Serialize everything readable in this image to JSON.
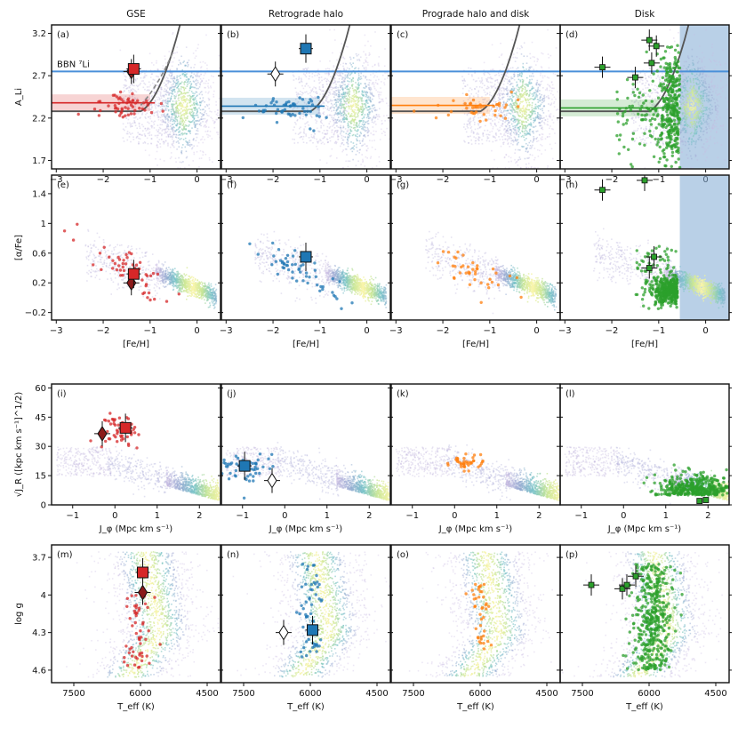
{
  "columns": [
    {
      "title": "GSE",
      "color": "#d62728"
    },
    {
      "title": "Retrograde halo",
      "color": "#1f77b4"
    },
    {
      "title": "Prograde halo and disk",
      "color": "#ff7f0e"
    },
    {
      "title": "Disk",
      "color": "#2ca02c"
    }
  ],
  "rows": [
    {
      "key": "li",
      "ylabel": "A_Li",
      "xticks": [
        -3,
        -2,
        -1,
        0
      ],
      "yticks": [
        1.7,
        2.2,
        2.7,
        3.2
      ],
      "annotation": "BBN ⁷Li",
      "panel_labels": [
        "(a)",
        "(b)",
        "(c)",
        "(d)"
      ]
    },
    {
      "key": "alpha",
      "ylabel": "[α/Fe]",
      "xlabel": "[Fe/H]",
      "xticks": [
        -3,
        -2,
        -1,
        0
      ],
      "yticks": [
        -0.2,
        0.2,
        0.6,
        1.0,
        1.4
      ],
      "panel_labels": [
        "(e)",
        "(f)",
        "(g)",
        "(h)"
      ]
    },
    {
      "key": "action",
      "ylabel": "√J_R ([kpc km s⁻¹]^1/2)",
      "xlabel": "J_φ (Mpc km s⁻¹)",
      "xticks": [
        -1,
        0,
        1,
        2
      ],
      "yticks": [
        0,
        15,
        30,
        45,
        60
      ],
      "panel_labels": [
        "(i)",
        "(j)",
        "(k)",
        "(l)"
      ]
    },
    {
      "key": "kiel",
      "ylabel": "log g",
      "xlabel": "T_eff (K)",
      "xticks": [
        7500,
        6000,
        4500
      ],
      "yticks": [
        3.7,
        4.0,
        4.3,
        4.6
      ],
      "panel_labels": [
        "(m)",
        "(n)",
        "(o)",
        "(p)"
      ]
    }
  ],
  "chart_data": [
    {
      "type": "scatter",
      "row": "li",
      "x": "[Fe/H]",
      "y": "A_Li",
      "xlim": [
        -3.1,
        0.5
      ],
      "ylim": [
        1.6,
        3.3
      ],
      "bbn_li": 2.75,
      "spite_plateau": {
        "GSE": 2.38,
        "Retrograde halo": 2.34,
        "Prograde halo and disk": 2.35,
        "Disk": 2.32
      },
      "mean_points": [
        {
          "column": "GSE",
          "square": [
            -1.35,
            2.78
          ],
          "diamond": [
            -1.4,
            2.75
          ]
        },
        {
          "column": "Retrograde halo",
          "square": [
            -1.3,
            3.02
          ],
          "diamond": [
            -1.95,
            2.72
          ]
        }
      ]
    },
    {
      "type": "scatter",
      "row": "alpha",
      "x": "[Fe/H]",
      "y": "[α/Fe]",
      "xlim": [
        -3.1,
        0.5
      ],
      "ylim": [
        -0.3,
        1.65
      ],
      "mean_points": [
        {
          "column": "GSE",
          "square": [
            -1.35,
            0.32
          ],
          "diamond": [
            -1.4,
            0.2
          ]
        },
        {
          "column": "Retrograde halo",
          "square": [
            -1.3,
            0.55
          ]
        }
      ]
    },
    {
      "type": "scatter",
      "row": "action",
      "x": "J_φ (Mpc km s⁻¹)",
      "y": "√J_R",
      "xlim": [
        -1.5,
        2.5
      ],
      "ylim": [
        0,
        62
      ],
      "mean_points": [
        {
          "column": "GSE",
          "square": [
            0.25,
            39.5
          ],
          "diamond": [
            -0.3,
            36.5
          ]
        },
        {
          "column": "Retrograde halo",
          "square": [
            -0.95,
            20
          ],
          "diamond": [
            -0.3,
            12.5
          ]
        }
      ]
    },
    {
      "type": "scatter",
      "row": "kiel",
      "x": "T_eff (K)",
      "y": "log g",
      "xlim": [
        8000,
        4200
      ],
      "ylim": [
        4.7,
        3.6
      ],
      "mean_points": [
        {
          "column": "GSE",
          "square": [
            5950,
            3.82
          ],
          "diamond": [
            5950,
            3.98
          ]
        },
        {
          "column": "Retrograde halo",
          "square": [
            5950,
            4.28
          ],
          "diamond": [
            6600,
            4.3
          ]
        }
      ]
    }
  ]
}
